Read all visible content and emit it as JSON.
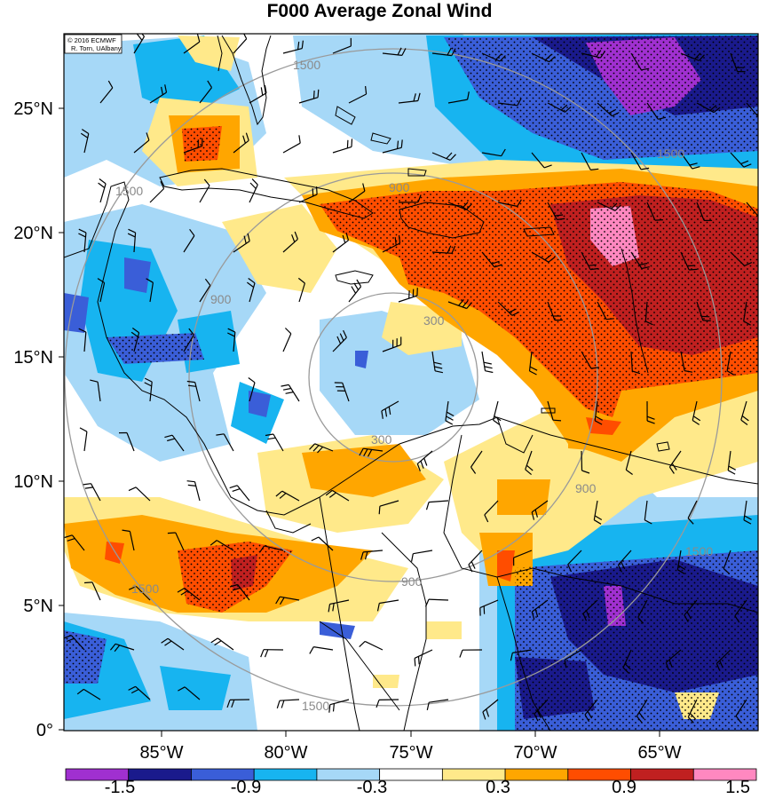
{
  "title": "F000 Average Zonal Wind",
  "credit": {
    "line1": "© 2016 ECMWF",
    "line2": "R. Torn, UAlbany"
  },
  "lat_labels": [
    "25°N",
    "20°N",
    "15°N",
    "10°N",
    "5°N",
    "0°"
  ],
  "lon_labels": [
    "85°W",
    "80°W",
    "75°W",
    "70°W",
    "65°W"
  ],
  "colorbar": {
    "labels": [
      "-1.5",
      "-0.9",
      "-0.3",
      "0.3",
      "0.9",
      "1.5"
    ],
    "colors": [
      "#a030d0",
      "#1a1a8c",
      "#3a5ed8",
      "#17b4f0",
      "#a6d8f7",
      "#ffffff",
      "#ffe98a",
      "#ffa600",
      "#ff4d00",
      "#c02020",
      "#ff88c0"
    ]
  },
  "ring_labels": [
    "300",
    "300",
    "900",
    "900",
    "900",
    "900",
    "1500",
    "1500",
    "1500",
    "1500",
    "1500",
    "1500"
  ],
  "colors": {
    "ring": "#9a9a9a",
    "coast": "#000000"
  }
}
